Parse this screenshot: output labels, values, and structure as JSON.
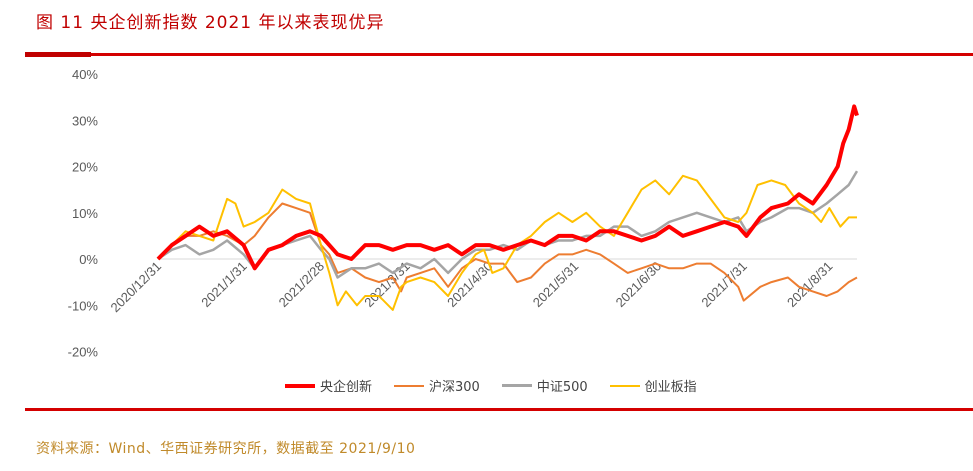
{
  "title": "图 11 央企创新指数 2021 年以来表现优异",
  "source": "资料来源：Wind、华西证券研究所，数据截至 2021/9/10",
  "chart_data": {
    "type": "line",
    "title": "央企创新指数 2021 年以来表现优异",
    "ylim": [
      -20,
      40
    ],
    "yticks": [
      -20,
      -10,
      0,
      10,
      20,
      30,
      40
    ],
    "ytick_labels": [
      "-20%",
      "-10%",
      "0%",
      "10%",
      "20%",
      "30%",
      "40%"
    ],
    "x_unit": "days since 2020/12/31",
    "xlim": [
      0,
      253
    ],
    "xticks": [
      0,
      31,
      59,
      90,
      120,
      151,
      181,
      212,
      243
    ],
    "xtick_labels": [
      "2020/12/31",
      "2021/1/31",
      "2021/2/28",
      "2021/3/31",
      "2021/4/30",
      "2021/5/31",
      "2021/6/30",
      "2021/7/31",
      "2021/8/31"
    ],
    "legend_position": "bottom",
    "series": [
      {
        "name": "央企创新",
        "color": "#ff0000",
        "width": 4,
        "x": [
          0,
          5,
          10,
          15,
          20,
          25,
          31,
          35,
          40,
          45,
          50,
          55,
          59,
          62,
          65,
          70,
          75,
          80,
          85,
          90,
          95,
          100,
          105,
          110,
          115,
          120,
          125,
          130,
          135,
          140,
          145,
          150,
          155,
          160,
          165,
          170,
          175,
          180,
          185,
          190,
          195,
          200,
          205,
          210,
          213,
          218,
          222,
          228,
          232,
          237,
          242,
          246,
          248,
          250,
          252,
          253
        ],
        "y": [
          0,
          3,
          5,
          7,
          5,
          6,
          3,
          -2,
          2,
          3,
          5,
          6,
          5,
          3,
          1,
          0,
          3,
          3,
          2,
          3,
          3,
          2,
          3,
          1,
          3,
          3,
          2,
          3,
          4,
          3,
          5,
          5,
          4,
          6,
          6,
          5,
          4,
          5,
          7,
          5,
          6,
          7,
          8,
          7,
          5,
          9,
          11,
          12,
          14,
          12,
          16,
          20,
          25,
          28,
          33,
          31
        ]
      },
      {
        "name": "沪深300",
        "color": "#ed7d31",
        "width": 2,
        "x": [
          0,
          5,
          10,
          15,
          20,
          25,
          31,
          35,
          40,
          45,
          50,
          55,
          59,
          62,
          65,
          70,
          75,
          80,
          85,
          88,
          90,
          95,
          100,
          105,
          110,
          115,
          120,
          125,
          130,
          135,
          140,
          145,
          150,
          155,
          160,
          165,
          170,
          175,
          180,
          185,
          190,
          195,
          200,
          205,
          210,
          212,
          218,
          222,
          228,
          232,
          237,
          242,
          246,
          250,
          253
        ],
        "y": [
          0,
          3,
          5,
          5,
          6,
          5,
          3,
          5,
          9,
          12,
          11,
          10,
          3,
          1,
          -3,
          -2,
          -4,
          -5,
          -4,
          -7,
          -4,
          -3,
          -2,
          -6,
          -2,
          0,
          -1,
          -1,
          -5,
          -4,
          -1,
          1,
          1,
          2,
          1,
          -1,
          -3,
          -2,
          -1,
          -2,
          -2,
          -1,
          -1,
          -3,
          -6,
          -9,
          -6,
          -5,
          -4,
          -6,
          -7,
          -8,
          -7,
          -5,
          -4
        ]
      },
      {
        "name": "中证500",
        "color": "#a5a5a5",
        "width": 2.5,
        "x": [
          0,
          5,
          10,
          15,
          20,
          25,
          31,
          35,
          40,
          45,
          50,
          55,
          59,
          62,
          65,
          70,
          75,
          80,
          85,
          90,
          95,
          100,
          105,
          110,
          115,
          120,
          125,
          130,
          135,
          140,
          145,
          150,
          155,
          160,
          165,
          170,
          175,
          180,
          185,
          190,
          195,
          200,
          205,
          210,
          213,
          218,
          222,
          228,
          232,
          237,
          242,
          246,
          250,
          253
        ],
        "y": [
          0,
          2,
          3,
          1,
          2,
          4,
          1,
          -2,
          2,
          3,
          4,
          5,
          2,
          0,
          -4,
          -2,
          -2,
          -1,
          -3,
          -1,
          -2,
          0,
          -3,
          0,
          2,
          2,
          3,
          2,
          4,
          3,
          4,
          4,
          5,
          5,
          7,
          7,
          5,
          6,
          8,
          9,
          10,
          9,
          8,
          9,
          6,
          8,
          9,
          11,
          11,
          10,
          12,
          14,
          16,
          19
        ]
      },
      {
        "name": "创业板指",
        "color": "#ffc000",
        "width": 2,
        "x": [
          0,
          5,
          10,
          15,
          20,
          25,
          28,
          31,
          35,
          40,
          45,
          50,
          55,
          59,
          62,
          65,
          68,
          72,
          75,
          80,
          85,
          88,
          90,
          95,
          100,
          105,
          110,
          115,
          118,
          121,
          125,
          130,
          135,
          140,
          145,
          150,
          155,
          160,
          165,
          170,
          175,
          180,
          185,
          190,
          195,
          200,
          205,
          210,
          213,
          217,
          222,
          227,
          232,
          237,
          240,
          243,
          247,
          250,
          253
        ],
        "y": [
          0,
          3,
          6,
          5,
          4,
          13,
          12,
          7,
          8,
          10,
          15,
          13,
          12,
          3,
          -3,
          -10,
          -7,
          -10,
          -8,
          -8,
          -11,
          -6,
          -5,
          -4,
          -5,
          -8,
          -3,
          1,
          2,
          -3,
          -2,
          3,
          5,
          8,
          10,
          8,
          10,
          7,
          5,
          10,
          15,
          17,
          14,
          18,
          17,
          13,
          9,
          8,
          10,
          16,
          17,
          16,
          12,
          10,
          8,
          11,
          7,
          9,
          9
        ]
      }
    ]
  }
}
